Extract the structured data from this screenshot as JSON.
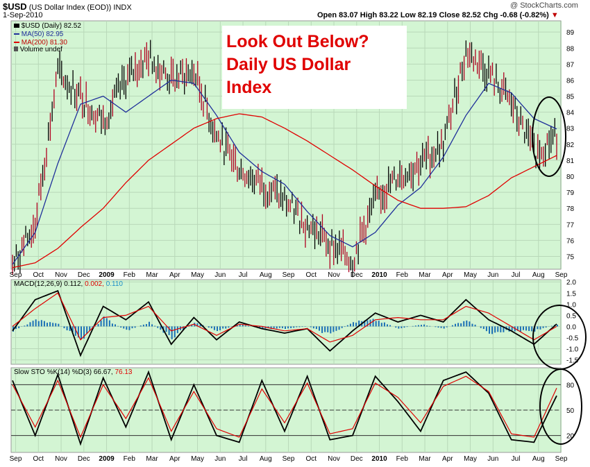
{
  "header": {
    "symbol": "$USD",
    "name": "(US Dollar Index (EOD))",
    "exchange": "INDX",
    "date": "1-Sep-2010",
    "watermark": "@ StockCharts.com",
    "ohlc": "Open 83.07  High 83.22  Low 82.19  Close 82.52  Chg -0.68 (-0.82%)",
    "change_arrow": "▼"
  },
  "annotation": {
    "line1": "Look Out Below?",
    "line2": "Daily US Dollar",
    "line3": "Index"
  },
  "legend": {
    "price": "$USD (Daily) 82.52",
    "ma50": "MA(50) 82.95",
    "ma200": "MA(200) 81.30",
    "volume": "Volume undef"
  },
  "macd_legend": {
    "label": "MACD(12,26,9)",
    "v1": "0.112,",
    "v2": "0.002,",
    "v3": "0.110"
  },
  "sto_legend": {
    "label": "Slow STO %K(14) %D(3)",
    "k": "66.67,",
    "d": "76.13"
  },
  "colors": {
    "panel_bg": "#d3f5d3",
    "grid": "#b8d8b8",
    "ma50": "#1f2f9a",
    "ma200": "#e00000",
    "price_up": "#000000",
    "price_down": "#b00020",
    "histogram": "#1a6fb5",
    "annotation_text": "#e00000",
    "macd_value_red": "#e00000",
    "macd_value_blue": "#1a8ec8"
  },
  "chart_data": [
    {
      "type": "line",
      "title": "$USD (US Dollar Index (EOD))",
      "x_ticks": [
        "Sep",
        "Oct",
        "Nov",
        "Dec",
        "2009",
        "Feb",
        "Mar",
        "Apr",
        "May",
        "Jun",
        "Jul",
        "Aug",
        "Sep",
        "Oct",
        "Nov",
        "Dec",
        "2010",
        "Feb",
        "Mar",
        "Apr",
        "May",
        "Jun",
        "Jul",
        "Aug",
        "Sep"
      ],
      "bold_ticks": [
        "2009",
        "2010"
      ],
      "y_ticks": [
        75,
        76,
        77,
        78,
        79,
        80,
        81,
        82,
        83,
        84,
        85,
        86,
        87,
        88,
        89
      ],
      "ylim": [
        74.2,
        89.7
      ],
      "x": [
        0,
        1,
        2,
        3,
        4,
        5,
        6,
        7,
        8,
        9,
        10,
        11,
        12,
        13,
        14,
        15,
        16,
        17,
        18,
        19,
        20,
        21,
        22,
        23,
        24
      ],
      "series": [
        {
          "name": "$USD (Daily)",
          "values": [
            74.4,
            77.0,
            86.5,
            85.0,
            83.5,
            86.0,
            87.5,
            86.0,
            86.5,
            82.5,
            80.5,
            79.5,
            78.5,
            77.0,
            75.8,
            74.8,
            78.5,
            80.0,
            80.8,
            82.0,
            87.8,
            86.5,
            84.5,
            81.5,
            82.5
          ]
        },
        {
          "name": "MA(50)",
          "values": [
            74.5,
            76.5,
            80.8,
            84.5,
            85.0,
            84.0,
            85.0,
            86.0,
            85.8,
            83.8,
            81.5,
            80.3,
            79.5,
            77.8,
            76.3,
            75.6,
            76.5,
            78.2,
            79.3,
            81.2,
            83.8,
            85.8,
            85.2,
            83.6,
            82.95
          ]
        },
        {
          "name": "MA(200)",
          "values": [
            74.3,
            74.6,
            75.5,
            76.8,
            78.0,
            79.6,
            81.0,
            82.0,
            83.0,
            83.6,
            83.9,
            83.7,
            83.0,
            82.2,
            81.3,
            80.4,
            79.4,
            78.5,
            78.0,
            78.0,
            78.1,
            78.8,
            79.9,
            80.6,
            81.3
          ]
        }
      ],
      "legend": "top-left"
    },
    {
      "type": "line",
      "title": "MACD(12,26,9)",
      "y_ticks": [
        -1.5,
        -1.0,
        -0.5,
        0.0,
        0.5,
        1.0,
        1.5,
        2.0
      ],
      "ylim": [
        -1.7,
        2.1
      ],
      "x": [
        0,
        1,
        2,
        3,
        4,
        5,
        6,
        7,
        8,
        9,
        10,
        11,
        12,
        13,
        14,
        15,
        16,
        17,
        18,
        19,
        20,
        21,
        22,
        23,
        24
      ],
      "series": [
        {
          "name": "MACD",
          "values": [
            -0.2,
            1.2,
            1.6,
            -1.3,
            0.9,
            0.3,
            1.1,
            -0.8,
            0.4,
            -0.6,
            0.2,
            -0.1,
            -0.3,
            -0.1,
            -1.1,
            -0.2,
            0.6,
            0.2,
            0.5,
            0.2,
            1.2,
            0.3,
            -0.2,
            -0.8,
            0.11
          ]
        },
        {
          "name": "Signal",
          "values": [
            0.0,
            0.8,
            1.5,
            -0.6,
            0.4,
            0.5,
            0.9,
            -0.2,
            0.1,
            -0.4,
            0.1,
            0.0,
            -0.2,
            -0.1,
            -0.7,
            -0.4,
            0.3,
            0.4,
            0.3,
            0.3,
            0.9,
            0.6,
            0.0,
            -0.6,
            0.0
          ]
        },
        {
          "name": "Histogram",
          "values": [
            -0.2,
            0.3,
            0.1,
            -0.6,
            0.4,
            -0.2,
            0.2,
            -0.5,
            0.2,
            -0.2,
            0.1,
            -0.1,
            -0.1,
            0.0,
            -0.4,
            0.2,
            0.3,
            -0.1,
            0.1,
            -0.1,
            0.3,
            -0.3,
            -0.2,
            -0.2,
            0.11
          ]
        }
      ]
    },
    {
      "type": "line",
      "title": "Slow STO %K(14) %D(3)",
      "y_ticks": [
        20,
        50,
        80
      ],
      "ylim": [
        0,
        100
      ],
      "reference_lines": [
        20,
        50,
        80
      ],
      "x": [
        0,
        1,
        2,
        3,
        4,
        5,
        6,
        7,
        8,
        9,
        10,
        11,
        12,
        13,
        14,
        15,
        16,
        17,
        18,
        19,
        20,
        21,
        22,
        23,
        24
      ],
      "series": [
        {
          "name": "%K",
          "values": [
            85,
            20,
            92,
            10,
            88,
            30,
            95,
            15,
            80,
            20,
            12,
            85,
            25,
            90,
            15,
            20,
            90,
            60,
            25,
            85,
            95,
            70,
            15,
            12,
            67
          ]
        },
        {
          "name": "%D",
          "values": [
            80,
            30,
            85,
            18,
            80,
            40,
            88,
            25,
            72,
            28,
            18,
            75,
            35,
            82,
            22,
            28,
            82,
            65,
            35,
            78,
            90,
            72,
            22,
            18,
            76
          ]
        }
      ]
    }
  ]
}
